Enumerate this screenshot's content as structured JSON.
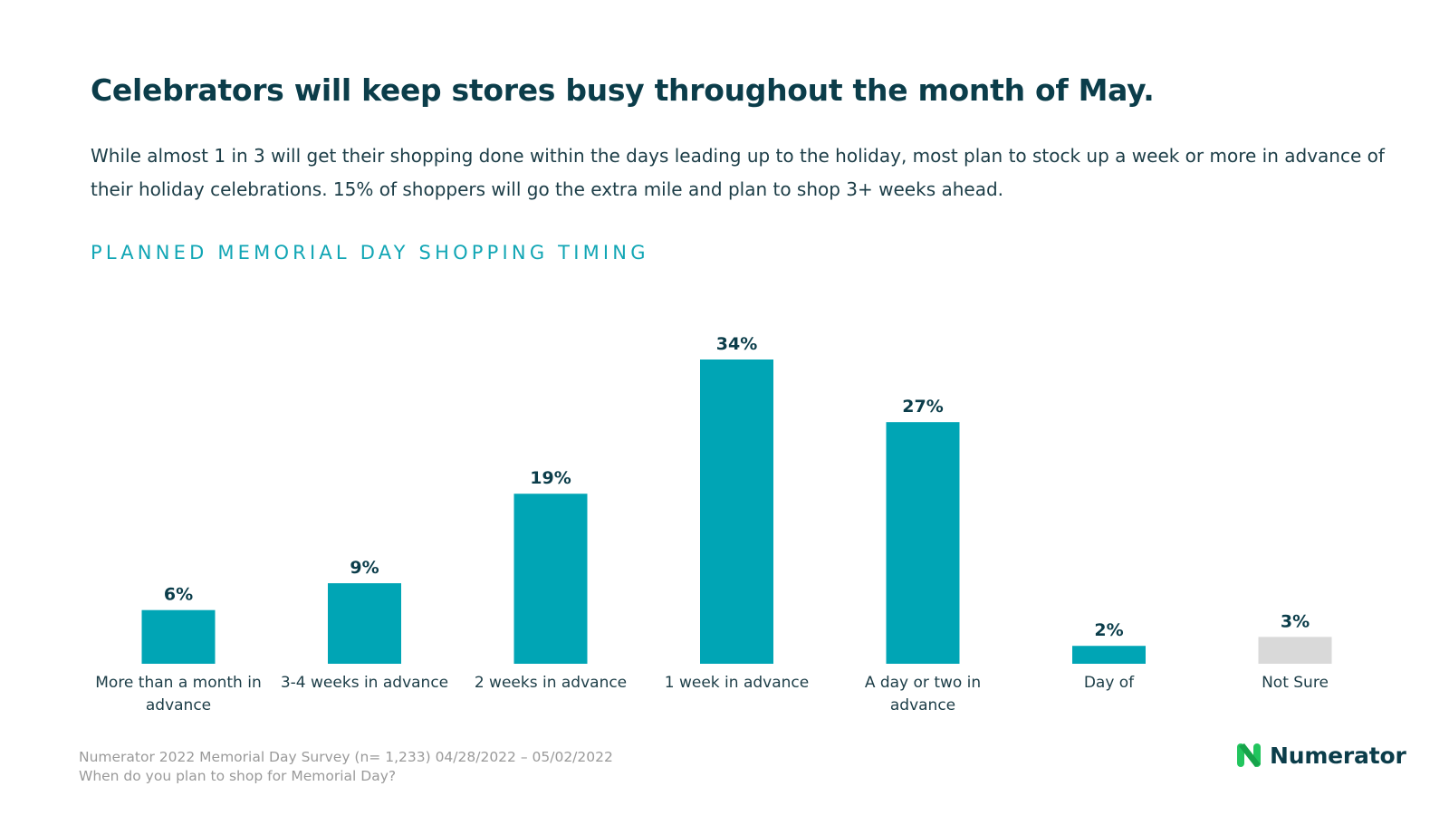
{
  "header": {
    "title": "Celebrators will keep stores busy throughout the month of May.",
    "subtitle": "While almost 1 in 3 will get their shopping done within the days leading up to the holiday, most plan to stock up a week or more in advance of their holiday celebrations. 15% of shoppers will go the extra mile and plan to shop 3+ weeks ahead."
  },
  "chart_data": {
    "type": "bar",
    "title": "PLANNED MEMORIAL DAY SHOPPING TIMING",
    "categories": [
      "More than a month in advance",
      "3-4 weeks in advance",
      "2 weeks in advance",
      "1 week in advance",
      "A day or two in advance",
      "Day of",
      "Not Sure"
    ],
    "values": [
      6,
      9,
      19,
      34,
      27,
      2,
      3
    ],
    "value_labels": [
      "6%",
      "9%",
      "19%",
      "34%",
      "27%",
      "2%",
      "3%"
    ],
    "colors": [
      "#00a5b5",
      "#00a5b5",
      "#00a5b5",
      "#00a5b5",
      "#00a5b5",
      "#00a5b5",
      "#d9d9d9"
    ],
    "xlabel": "",
    "ylabel": "",
    "ylim": [
      0,
      34
    ],
    "grid": false,
    "legend": "none"
  },
  "footer": {
    "source": "Numerator 2022 Memorial Day Survey (n= 1,233) 04/28/2022 – 05/02/2022",
    "question": "When do you plan to shop for Memorial Day?"
  },
  "brand": {
    "name": "Numerator",
    "accent_color": "#00a5b5",
    "logo_color": "#22c55e",
    "title_color": "#0b3d4a"
  }
}
